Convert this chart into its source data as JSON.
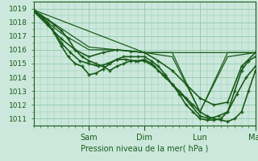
{
  "bg_color": "#cce8dc",
  "grid_color": "#99ccb3",
  "line_color": "#1a5c1a",
  "xlabel_text": "Pression niveau de la mer( hPa )",
  "day_labels": [
    "Sam",
    "Dim",
    "Lun",
    "Mar"
  ],
  "ylim": [
    1010.5,
    1019.5
  ],
  "yticks": [
    1011,
    1012,
    1013,
    1014,
    1015,
    1016,
    1017,
    1018,
    1019
  ],
  "xlim": [
    0,
    96
  ],
  "day_positions": [
    24,
    48,
    72,
    96
  ],
  "series": [
    {
      "x": [
        0,
        3,
        6,
        9,
        12,
        15,
        18,
        21,
        24,
        27,
        30,
        33,
        36,
        39,
        42,
        45,
        48,
        51,
        54,
        57,
        60,
        63,
        66,
        69,
        72,
        75,
        78,
        81,
        84,
        87,
        90,
        93,
        96
      ],
      "y": [
        1018.8,
        1018.5,
        1018.2,
        1017.8,
        1017.4,
        1016.8,
        1016.0,
        1015.5,
        1015.2,
        1015.0,
        1014.8,
        1014.5,
        1014.8,
        1015.0,
        1015.2,
        1015.2,
        1015.3,
        1015.0,
        1014.5,
        1014.0,
        1013.5,
        1013.0,
        1012.5,
        1012.0,
        1011.5,
        1011.2,
        1011.0,
        1010.9,
        1010.8,
        1011.0,
        1011.5,
        1013.0,
        1014.5
      ],
      "marker": "+",
      "lw": 1.2,
      "ms": 3.5
    },
    {
      "x": [
        0,
        4,
        8,
        12,
        16,
        20,
        24,
        28,
        32,
        36,
        40,
        44,
        48,
        52,
        56,
        60,
        64,
        68,
        72,
        76,
        80,
        84,
        88,
        92,
        96
      ],
      "y": [
        1018.8,
        1018.3,
        1017.5,
        1016.5,
        1015.8,
        1015.2,
        1015.0,
        1014.8,
        1015.0,
        1015.3,
        1015.3,
        1015.2,
        1015.2,
        1014.8,
        1014.2,
        1013.5,
        1012.8,
        1012.0,
        1011.2,
        1011.0,
        1011.2,
        1011.5,
        1012.8,
        1014.0,
        1014.8
      ],
      "marker": "+",
      "lw": 1.2,
      "ms": 3.5
    },
    {
      "x": [
        0,
        3,
        6,
        9,
        12,
        15,
        18,
        21,
        24,
        27,
        30,
        33,
        36,
        39,
        42,
        45,
        48,
        51,
        54,
        57,
        60,
        63,
        66,
        69,
        72,
        75,
        78,
        81,
        84,
        87,
        90,
        93,
        96
      ],
      "y": [
        1018.9,
        1018.5,
        1018.0,
        1017.2,
        1016.3,
        1015.5,
        1015.0,
        1014.8,
        1014.2,
        1014.3,
        1014.6,
        1015.0,
        1015.3,
        1015.5,
        1015.5,
        1015.5,
        1015.5,
        1015.2,
        1014.8,
        1014.2,
        1013.5,
        1012.8,
        1012.0,
        1011.5,
        1011.0,
        1010.9,
        1010.9,
        1011.0,
        1011.5,
        1013.0,
        1014.5,
        1015.2,
        1015.5
      ],
      "marker": "+",
      "lw": 1.2,
      "ms": 3.5
    },
    {
      "x": [
        0,
        6,
        12,
        18,
        24,
        30,
        36,
        42,
        48,
        54,
        60,
        66,
        72,
        78,
        84,
        90,
        96
      ],
      "y": [
        1018.8,
        1017.8,
        1016.8,
        1016.0,
        1015.5,
        1015.8,
        1016.0,
        1015.9,
        1015.8,
        1015.2,
        1014.5,
        1013.5,
        1012.5,
        1012.0,
        1012.2,
        1014.8,
        1015.8
      ],
      "marker": "+",
      "lw": 1.2,
      "ms": 3.5
    },
    {
      "x": [
        0,
        12,
        24,
        36,
        48,
        60,
        72,
        84,
        96
      ],
      "y": [
        1018.8,
        1017.2,
        1016.0,
        1016.0,
        1015.8,
        1015.5,
        1011.5,
        1015.5,
        1015.8
      ],
      "marker": null,
      "lw": 0.9,
      "ms": 0
    },
    {
      "x": [
        0,
        24,
        48,
        60,
        72,
        84,
        96
      ],
      "y": [
        1018.9,
        1016.2,
        1015.8,
        1015.8,
        1011.5,
        1015.8,
        1015.8
      ],
      "marker": null,
      "lw": 0.9,
      "ms": 0
    },
    {
      "x": [
        0,
        48,
        72,
        96
      ],
      "y": [
        1018.9,
        1015.8,
        1015.8,
        1015.8
      ],
      "marker": null,
      "lw": 0.9,
      "ms": 0
    }
  ]
}
